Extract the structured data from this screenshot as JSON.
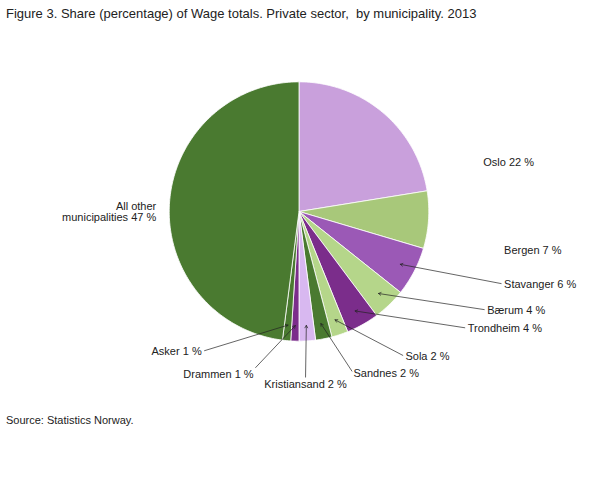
{
  "chart_data": {
    "type": "pie",
    "title": "Figure 3. Share (percentage) of Wage totals. Private sector,  by municipality. 2013",
    "source": "Source: Statistics Norway.",
    "categories": [
      "Oslo 22 %",
      "Bergen 7 %",
      "Stavanger 6 %",
      "Bærum 4 %",
      "Trondheim 4 %",
      "Sola 2 %",
      "Sandnes 2 %",
      "Kristiansand 2 %",
      "Drammen 1 %",
      "Asker 1 %",
      "All other\nmunicipalities 47 %"
    ],
    "values": [
      22,
      7,
      6,
      4,
      4,
      2,
      2,
      2,
      1,
      1,
      47
    ],
    "colors": [
      "#c9a0dc",
      "#a8c87a",
      "#9b59b6",
      "#b5d68a",
      "#7b2d8b",
      "#b5d68a",
      "#4a7a30",
      "#d8b8f0",
      "#7b2d8b",
      "#4a7a30",
      "#4a7a30"
    ]
  }
}
